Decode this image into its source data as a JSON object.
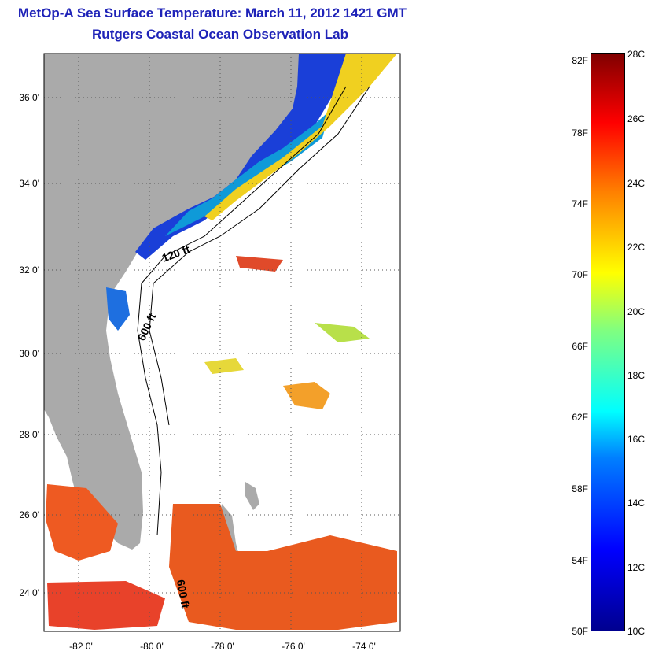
{
  "title": "MetOp-A Sea Surface Temperature:  March 11, 2012 1421 GMT",
  "subtitle": "Rutgers Coastal Ocean Observation Lab",
  "lat_labels": [
    "36 0'",
    "34 0'",
    "32 0'",
    "30 0'",
    "28 0'",
    "26 0'",
    "24 0'"
  ],
  "lon_labels": [
    "-82 0'",
    "-80 0'",
    "-78 0'",
    "-76 0'",
    "-74 0'"
  ],
  "contour_labels": [
    "120 ft",
    "600 ft",
    "600 ft"
  ],
  "colorbar": {
    "fahrenheit": [
      "82F",
      "78F",
      "74F",
      "70F",
      "66F",
      "62F",
      "58F",
      "54F",
      "50F"
    ],
    "celsius": [
      "28C",
      "26C",
      "24C",
      "22C",
      "20C",
      "18C",
      "16C",
      "14C",
      "12C",
      "10C"
    ]
  },
  "colors": {
    "title": "#1f23b8",
    "land": "#aaaaaa",
    "ocean_nodata": "#ffffff"
  }
}
